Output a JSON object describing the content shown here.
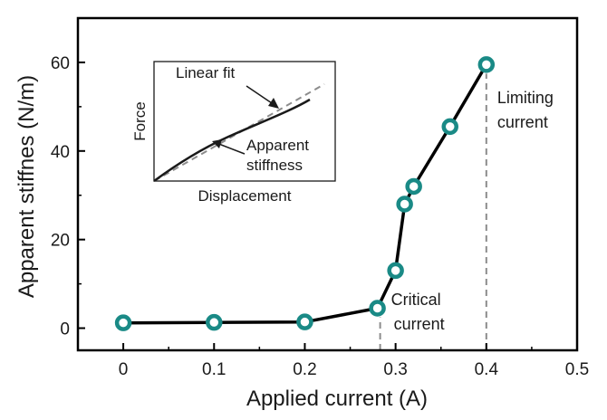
{
  "chart_data": {
    "type": "line",
    "xlabel": "Applied current (A)",
    "ylabel": "Apparent stiffnes (N/m)",
    "xlim": [
      -0.05,
      0.5
    ],
    "ylim": [
      -5,
      70
    ],
    "xticks": [
      0,
      0.1,
      0.2,
      0.3,
      0.4,
      0.5
    ],
    "xtick_labels": [
      "0",
      "0.1",
      "0.2",
      "0.3",
      "0.4",
      "0.5"
    ],
    "yticks": [
      0,
      20,
      40,
      60
    ],
    "ytick_labels": [
      "0",
      "20",
      "40",
      "60"
    ],
    "grid": false,
    "series": [
      {
        "name": "Apparent stiffness",
        "x": [
          0,
          0.1,
          0.2,
          0.28,
          0.3,
          0.31,
          0.32,
          0.36,
          0.4
        ],
        "y": [
          1.2,
          1.3,
          1.4,
          4.5,
          13,
          28,
          32,
          45.5,
          59.5
        ],
        "color": "#1a8a86"
      }
    ],
    "reference_lines": [
      {
        "x": 0.283,
        "label_lines": [
          "Critical",
          "current"
        ]
      },
      {
        "x": 0.4,
        "label_lines": [
          "Limiting",
          "current"
        ]
      }
    ],
    "inset": {
      "xlabel": "Displacement",
      "ylabel": "Force",
      "labels": {
        "linear_fit": "Linear fit",
        "apparent_lines": [
          "Apparent",
          "stiffness"
        ]
      }
    }
  }
}
